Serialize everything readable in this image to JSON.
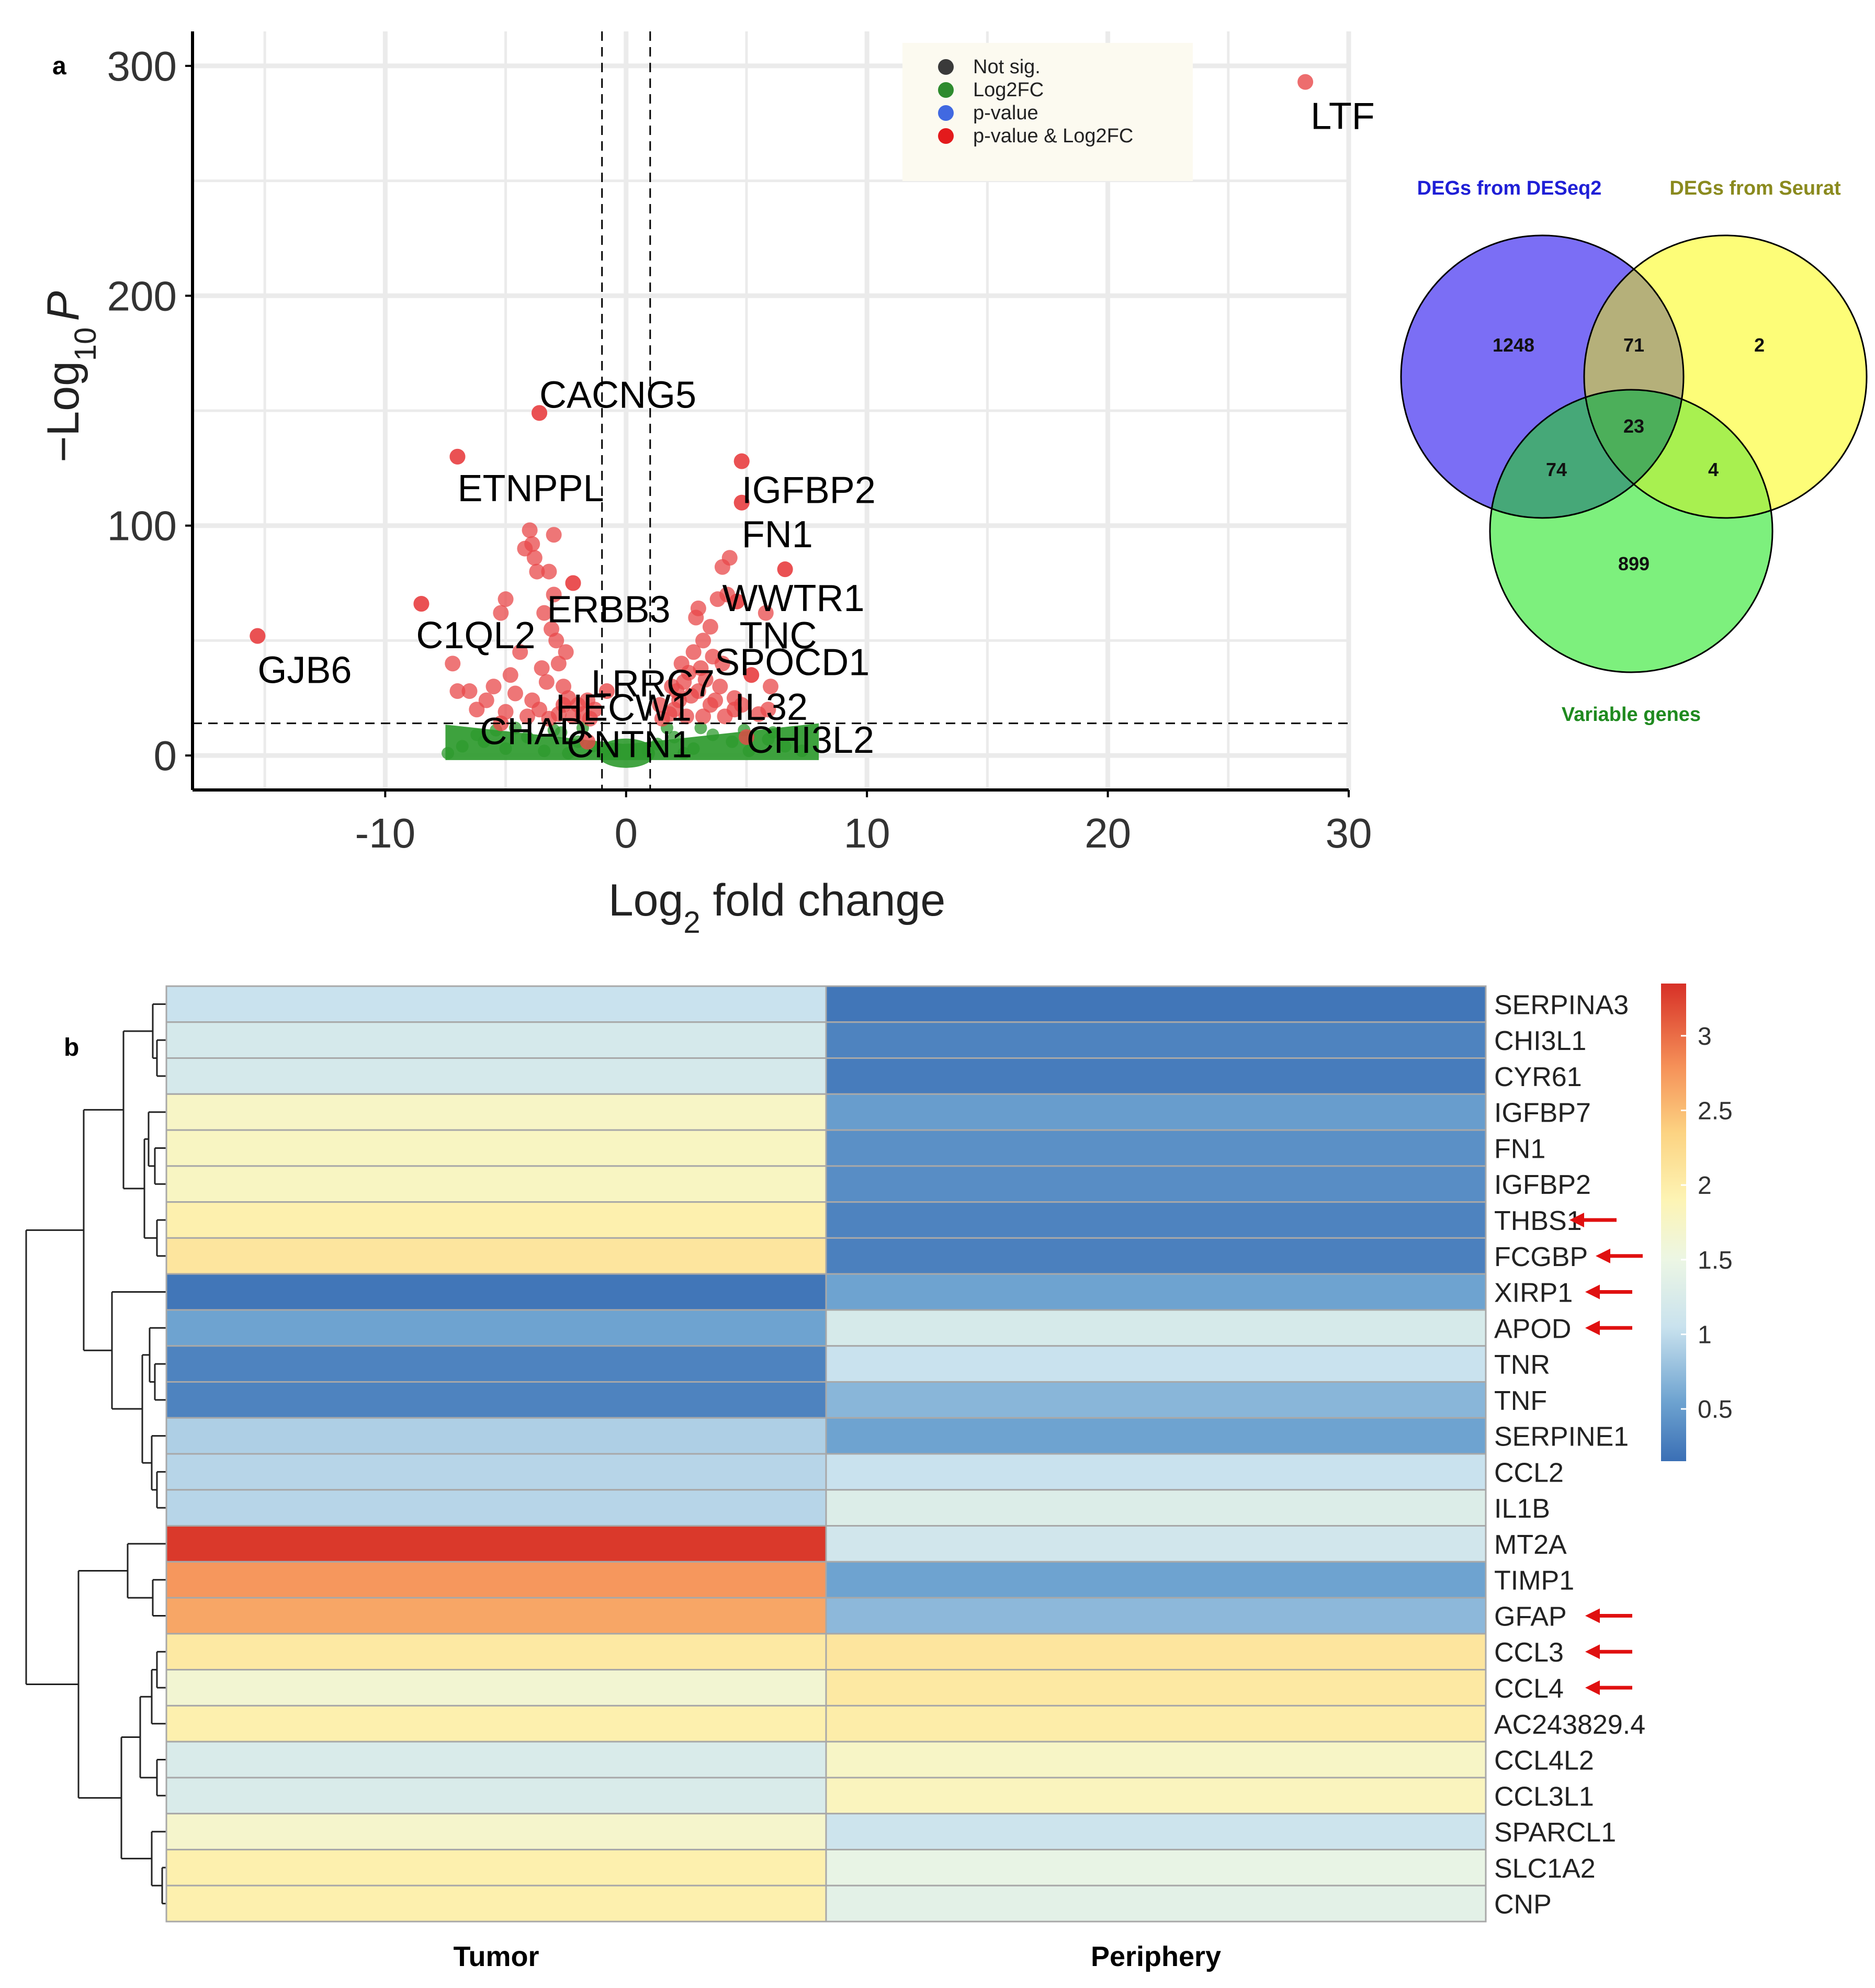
{
  "panel_labels": {
    "a": "a",
    "b": "b"
  },
  "chart_data": [
    {
      "type": "scatter",
      "title": "",
      "xlabel_main": "Log",
      "xlabel_sub": "2",
      "xlabel_rest": " fold change",
      "ylabel_main": "−Log",
      "ylabel_sub": "10",
      "ylabel_var": "P",
      "xlim": [
        -18,
        30
      ],
      "ylim": [
        -15,
        315
      ],
      "x_ticks": [
        -10,
        0,
        10,
        20,
        30
      ],
      "y_ticks": [
        0,
        100,
        200,
        300
      ],
      "x_tick_labels": [
        "-10",
        "0",
        "10",
        "20",
        "30"
      ],
      "y_tick_labels": [
        "0",
        "100",
        "200",
        "300"
      ],
      "thresholds": {
        "fc": [
          -1,
          1
        ],
        "p": 14
      },
      "legend": {
        "position": "top-right",
        "items": [
          {
            "label": "Not sig.",
            "color": "#3a3a3a"
          },
          {
            "label": "Log2FC",
            "color": "#2e8b2e"
          },
          {
            "label": "p-value",
            "color": "#4169e1"
          },
          {
            "label": "p-value & Log2FC",
            "color": "#e31a1c"
          }
        ]
      },
      "colors": {
        "sig": "#e8484a",
        "fc": "#2e9a2e"
      },
      "labeled_genes": [
        {
          "gene": "LTF",
          "x": 28.2,
          "y": 293
        },
        {
          "gene": "CACNG5",
          "x": -3.6,
          "y": 149
        },
        {
          "gene": "ETNPPL",
          "x": -7.0,
          "y": 130
        },
        {
          "gene": "IGFBP2",
          "x": 4.8,
          "y": 128
        },
        {
          "gene": "FN1",
          "x": 4.8,
          "y": 110
        },
        {
          "gene": "GJB6",
          "x": -15.3,
          "y": 52
        },
        {
          "gene": "ERBB3",
          "x": -2.2,
          "y": 75
        },
        {
          "gene": "WWTR1",
          "x": 6.6,
          "y": 81
        },
        {
          "gene": "C1QL2",
          "x": -8.5,
          "y": 66
        },
        {
          "gene": "TNC",
          "x": 4.6,
          "y": 67
        },
        {
          "gene": "SPOCD1",
          "x": 5.2,
          "y": 35
        },
        {
          "gene": "LRRC7",
          "x": -0.8,
          "y": 28
        },
        {
          "gene": "HECW1",
          "x": -2.6,
          "y": 22
        },
        {
          "gene": "IL32",
          "x": 4.5,
          "y": 20
        },
        {
          "gene": "CHAD",
          "x": -5.2,
          "y": 14
        },
        {
          "gene": "CNTN1",
          "x": -1.6,
          "y": 6
        },
        {
          "gene": "CHI3L2",
          "x": 5.0,
          "y": 8
        }
      ],
      "sig_points": [
        [
          -7.0,
          130
        ],
        [
          -3.6,
          149
        ],
        [
          4.8,
          128
        ],
        [
          4.8,
          110
        ],
        [
          -15.3,
          52
        ],
        [
          -8.5,
          66
        ],
        [
          -7.2,
          40
        ],
        [
          -7.0,
          28
        ],
        [
          -6.5,
          28
        ],
        [
          -5.0,
          68
        ],
        [
          -5.2,
          62
        ],
        [
          -4.0,
          98
        ],
        [
          -3.9,
          92
        ],
        [
          -3.8,
          86
        ],
        [
          -3.7,
          80
        ],
        [
          -4.2,
          90
        ],
        [
          -3.0,
          96
        ],
        [
          -3.2,
          80
        ],
        [
          -3.0,
          70
        ],
        [
          -3.4,
          62
        ],
        [
          -3.1,
          55
        ],
        [
          -2.9,
          50
        ],
        [
          -2.2,
          75
        ],
        [
          -2.5,
          45
        ],
        [
          -2.8,
          40
        ],
        [
          -3.5,
          38
        ],
        [
          -3.3,
          32
        ],
        [
          -2.6,
          30
        ],
        [
          -2.4,
          25
        ],
        [
          -4.4,
          45
        ],
        [
          -4.8,
          35
        ],
        [
          -5.5,
          30
        ],
        [
          -5.8,
          24
        ],
        [
          -6.2,
          20
        ],
        [
          -4.6,
          27
        ],
        [
          -3.9,
          24
        ],
        [
          -3.6,
          20
        ],
        [
          -2.0,
          22
        ],
        [
          -1.8,
          18
        ],
        [
          -1.5,
          16
        ],
        [
          -2.2,
          17
        ],
        [
          -2.8,
          18
        ],
        [
          -3.2,
          16
        ],
        [
          -4.1,
          17
        ],
        [
          -5.0,
          19
        ],
        [
          -1.3,
          20
        ],
        [
          -1.6,
          24
        ],
        [
          4.3,
          86
        ],
        [
          4.0,
          82
        ],
        [
          6.6,
          81
        ],
        [
          4.6,
          67
        ],
        [
          5.8,
          62
        ],
        [
          4.2,
          70
        ],
        [
          3.8,
          68
        ],
        [
          3.0,
          64
        ],
        [
          2.9,
          60
        ],
        [
          3.5,
          56
        ],
        [
          3.2,
          50
        ],
        [
          2.8,
          45
        ],
        [
          3.6,
          43
        ],
        [
          4.0,
          40
        ],
        [
          3.1,
          38
        ],
        [
          2.6,
          36
        ],
        [
          2.4,
          32
        ],
        [
          3.3,
          33
        ],
        [
          3.0,
          28
        ],
        [
          2.7,
          26
        ],
        [
          2.2,
          24
        ],
        [
          4.5,
          25
        ],
        [
          4.8,
          22
        ],
        [
          5.2,
          35
        ],
        [
          3.9,
          30
        ],
        [
          3.5,
          22
        ],
        [
          2.0,
          20
        ],
        [
          1.8,
          18
        ],
        [
          1.5,
          16
        ],
        [
          2.5,
          17
        ],
        [
          3.2,
          17
        ],
        [
          4.1,
          17
        ],
        [
          5.5,
          18
        ],
        [
          5.9,
          20
        ],
        [
          1.4,
          22
        ],
        [
          2.1,
          28
        ],
        [
          3.7,
          24
        ],
        [
          6.0,
          30
        ],
        [
          2.3,
          40
        ],
        [
          1.9,
          30
        ]
      ],
      "fc_band": {
        "x_range": [
          -7.5,
          8.0
        ],
        "y_max": 14
      },
      "fc_points": [
        [
          -6.8,
          4
        ],
        [
          -5.9,
          6
        ],
        [
          -5.0,
          3
        ],
        [
          -4.1,
          8
        ],
        [
          -3.4,
          2
        ],
        [
          -2.7,
          10
        ],
        [
          -2.0,
          6
        ],
        [
          -1.4,
          4
        ],
        [
          1.3,
          5
        ],
        [
          2.0,
          8
        ],
        [
          2.8,
          3
        ],
        [
          3.6,
          9
        ],
        [
          4.4,
          6
        ],
        [
          5.1,
          2
        ],
        [
          5.9,
          7
        ],
        [
          6.6,
          4
        ],
        [
          7.3,
          2
        ],
        [
          -7.4,
          1
        ],
        [
          -6.2,
          9
        ],
        [
          -4.6,
          12
        ],
        [
          -3.0,
          11
        ],
        [
          -1.8,
          12
        ],
        [
          1.7,
          12
        ],
        [
          3.1,
          12
        ],
        [
          4.9,
          11
        ],
        [
          6.1,
          10
        ],
        [
          -5.4,
          11
        ],
        [
          2.4,
          1
        ],
        [
          -2.4,
          1
        ],
        [
          0.9,
          2
        ],
        [
          -0.9,
          2
        ]
      ]
    },
    {
      "type": "venn",
      "sets": [
        {
          "name": "DEGs from DESeq2",
          "color": "#7b6ef5",
          "title_color": "#1f1fd6"
        },
        {
          "name": "DEGs from Seurat",
          "color": "#fdfd78",
          "title_color": "#8a8a1e"
        },
        {
          "name": "Variable genes",
          "color": "#7df07d",
          "title_color": "#1f8a1f"
        }
      ],
      "region_values": {
        "deseq2_only": "1248",
        "seurat_only": "2",
        "variable_only": "899",
        "deseq2_seurat": "71",
        "deseq2_variable": "74",
        "seurat_variable": "4",
        "all_three": "23"
      },
      "region_colors": {
        "deseq2_seurat": "#b5b07a",
        "deseq2_variable": "#46a878",
        "seurat_variable": "#a8f050",
        "all_three": "#4caf5a"
      }
    },
    {
      "type": "heatmap",
      "columns": [
        "Tumor",
        "Periphery"
      ],
      "rows": [
        "SERPINA3",
        "CHI3L1",
        "CYR61",
        "IGFBP7",
        "FN1",
        "IGFBP2",
        "THBS1",
        "FCGBP",
        "XIRP1",
        "APOD",
        "TNR",
        "TNF",
        "SERPINE1",
        "CCL2",
        "IL1B",
        "MT2A",
        "TIMP1",
        "GFAP",
        "CCL3",
        "CCL4",
        "AC243829.4",
        "CCL4L2",
        "CCL3L1",
        "SPARCL1",
        "SLC1A2",
        "CNP"
      ],
      "values": [
        [
          1.05,
          0.2
        ],
        [
          1.2,
          0.3
        ],
        [
          1.2,
          0.25
        ],
        [
          1.75,
          0.5
        ],
        [
          1.78,
          0.4
        ],
        [
          1.78,
          0.38
        ],
        [
          1.95,
          0.3
        ],
        [
          2.1,
          0.28
        ],
        [
          0.2,
          0.55
        ],
        [
          0.55,
          1.22
        ],
        [
          0.3,
          1.05
        ],
        [
          0.3,
          0.7
        ],
        [
          0.9,
          0.55
        ],
        [
          0.95,
          1.05
        ],
        [
          0.95,
          1.3
        ],
        [
          3.3,
          1.15
        ],
        [
          2.75,
          0.55
        ],
        [
          2.65,
          0.72
        ],
        [
          2.05,
          2.1
        ],
        [
          1.65,
          2.05
        ],
        [
          1.95,
          2.0
        ],
        [
          1.25,
          1.75
        ],
        [
          1.25,
          1.82
        ],
        [
          1.7,
          1.1
        ],
        [
          1.95,
          1.45
        ],
        [
          1.95,
          1.38
        ]
      ],
      "arrow_rows": [
        "THBS1",
        "FCGBP",
        "XIRP1",
        "APOD",
        "GFAP",
        "CCL3",
        "CCL4"
      ],
      "arrow_color": "#e01010",
      "colorbar": {
        "min": 0.15,
        "max": 3.35,
        "ticks": [
          0.5,
          1,
          1.5,
          2,
          2.5,
          3
        ],
        "tick_labels": [
          "0.5",
          "1",
          "1.5",
          "2",
          "2.5",
          "3"
        ],
        "stops": [
          [
            0.15,
            "#3a6fb5"
          ],
          [
            0.55,
            "#6ea3d0"
          ],
          [
            1.05,
            "#c9e2ee"
          ],
          [
            1.5,
            "#ecf6e4"
          ],
          [
            1.9,
            "#fdf4b4"
          ],
          [
            2.35,
            "#fcd382"
          ],
          [
            2.8,
            "#f59058"
          ],
          [
            3.35,
            "#d73027"
          ]
        ]
      }
    }
  ]
}
